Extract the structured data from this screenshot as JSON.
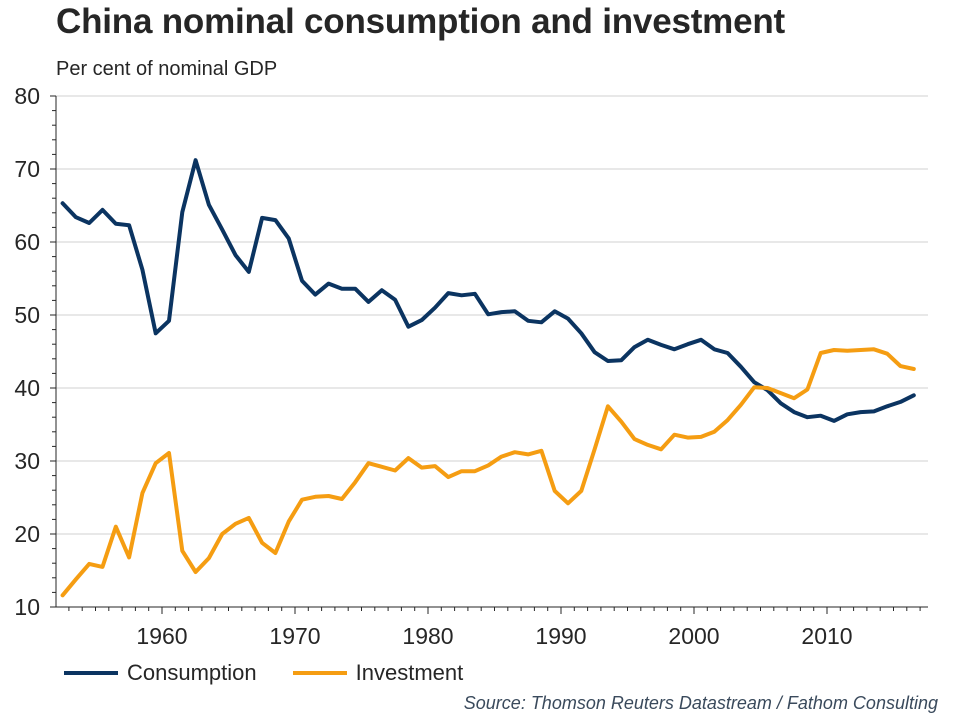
{
  "header": {
    "title": "China nominal consumption and investment",
    "subtitle": "Per cent of nominal GDP"
  },
  "footer": {
    "source": "Source: Thomson Reuters Datastream / Fathom Consulting"
  },
  "colors": {
    "consumption": "#0b3461",
    "investment": "#f59d12",
    "grid": "#d0d0d0",
    "axis": "#262626"
  },
  "chart_data": {
    "type": "line",
    "title": "China nominal consumption and investment",
    "subtitle": "Per cent of nominal GDP",
    "xlabel": "",
    "ylabel": "Per cent of nominal GDP",
    "xlim": [
      1952,
      2018
    ],
    "ylim": [
      10,
      80
    ],
    "yticks": [
      10,
      20,
      30,
      40,
      50,
      60,
      70,
      80
    ],
    "xticks": [
      1960,
      1970,
      1980,
      1990,
      2000,
      2010
    ],
    "ytick_labels": [
      "10",
      "20",
      "30",
      "40",
      "50",
      "60",
      "70",
      "80"
    ],
    "xtick_labels": [
      "1960",
      "1970",
      "1980",
      "1990",
      "2000",
      "2010"
    ],
    "grid": true,
    "legend_position": "bottom-left",
    "x": [
      1952,
      1953,
      1954,
      1955,
      1956,
      1957,
      1958,
      1959,
      1960,
      1961,
      1962,
      1963,
      1964,
      1965,
      1966,
      1967,
      1968,
      1969,
      1970,
      1971,
      1972,
      1973,
      1974,
      1975,
      1976,
      1977,
      1978,
      1979,
      1980,
      1981,
      1982,
      1983,
      1984,
      1985,
      1986,
      1987,
      1988,
      1989,
      1990,
      1991,
      1992,
      1993,
      1994,
      1995,
      1996,
      1997,
      1998,
      1999,
      2000,
      2001,
      2002,
      2003,
      2004,
      2005,
      2006,
      2007,
      2008,
      2009,
      2010,
      2011,
      2012,
      2013,
      2014,
      2015,
      2016
    ],
    "series": [
      {
        "name": "Consumption",
        "values": [
          65.3,
          63.4,
          62.6,
          64.4,
          62.5,
          62.3,
          56.2,
          47.5,
          49.2,
          64.1,
          71.2,
          65.1,
          61.7,
          58.2,
          55.9,
          63.3,
          63.0,
          60.5,
          54.7,
          52.8,
          54.3,
          53.6,
          53.6,
          51.8,
          53.4,
          52.1,
          48.4,
          49.3,
          51.0,
          53.0,
          52.7,
          52.9,
          50.1,
          50.4,
          50.5,
          49.2,
          49.0,
          50.5,
          49.5,
          47.5,
          44.9,
          43.7,
          43.8,
          45.6,
          46.6,
          45.9,
          45.3,
          46.0,
          46.6,
          45.3,
          44.8,
          42.9,
          40.8,
          39.7,
          37.9,
          36.7,
          36.0,
          36.2,
          35.5,
          36.4,
          36.7,
          36.8,
          37.5,
          38.1,
          39.0
        ]
      },
      {
        "name": "Investment",
        "values": [
          11.6,
          13.8,
          15.9,
          15.5,
          21.0,
          16.8,
          25.6,
          29.7,
          31.1,
          17.7,
          14.8,
          16.7,
          20.0,
          21.4,
          22.2,
          18.8,
          17.4,
          21.7,
          24.7,
          25.1,
          25.2,
          24.8,
          27.1,
          29.7,
          29.2,
          28.7,
          30.4,
          29.1,
          29.3,
          27.8,
          28.6,
          28.6,
          29.4,
          30.6,
          31.2,
          30.9,
          31.4,
          25.9,
          24.2,
          25.9,
          31.6,
          37.5,
          35.4,
          33.0,
          32.2,
          31.6,
          33.6,
          33.2,
          33.3,
          34.0,
          35.6,
          37.7,
          40.1,
          40.0,
          39.3,
          38.6,
          39.8,
          44.8,
          45.2,
          45.1,
          45.2,
          45.3,
          44.7,
          43.0,
          42.6
        ]
      }
    ]
  }
}
